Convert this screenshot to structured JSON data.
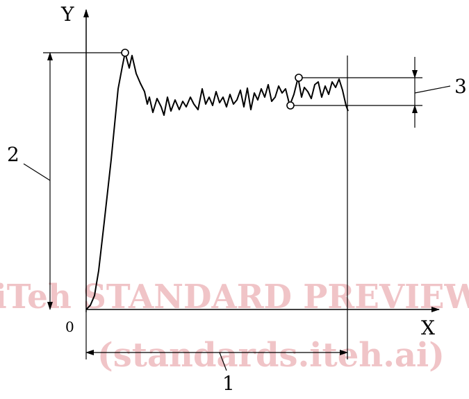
{
  "axes": {
    "x_label": "X",
    "y_label": "Y",
    "origin_label": "0"
  },
  "callouts": {
    "one": "1",
    "two": "2",
    "three": "3"
  },
  "watermark": {
    "line1": "iTeh STANDARD PREVIEW",
    "line2": "(standards.iteh.ai)"
  },
  "colors": {
    "ink": "#000000",
    "watermark": "#f0c4c7"
  }
}
